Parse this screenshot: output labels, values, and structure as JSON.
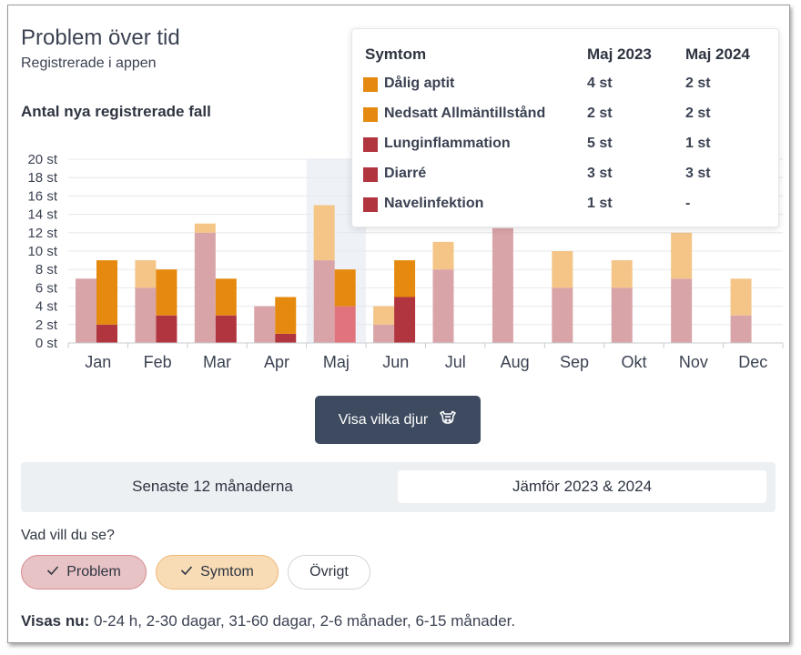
{
  "header": {
    "title": "Problem över tid",
    "subtitle": "Registrerade i appen",
    "chart_heading": "Antal nya registrerade fall"
  },
  "colors": {
    "problem_light": "#d9a4a8",
    "problem_dark": "#b0353f",
    "symtom_light": "#f4c587",
    "symtom_dark": "#e58a0f",
    "highlight_band": "#eef2f7",
    "selected_problem": "#e0737c",
    "button_bg": "#3d4a5f"
  },
  "chart_data": {
    "type": "bar",
    "stacked": true,
    "grouped_by_year": true,
    "categories": [
      "Jan",
      "Feb",
      "Mar",
      "Apr",
      "Maj",
      "Jun",
      "Jul",
      "Aug",
      "Sep",
      "Okt",
      "Nov",
      "Dec"
    ],
    "y_ticks": [
      "0 st",
      "2 st",
      "4 st",
      "6 st",
      "8 st",
      "10 st",
      "12 st",
      "14 st",
      "16 st",
      "18 st",
      "20 st"
    ],
    "ylim": [
      0,
      20
    ],
    "grid": true,
    "highlighted_category": "Maj",
    "series": [
      {
        "year": "2023",
        "stack": "Problem",
        "values": [
          7,
          6,
          12,
          4,
          9,
          2,
          8,
          12.5,
          6,
          6,
          7,
          3
        ]
      },
      {
        "year": "2023",
        "stack": "Symtom",
        "values": [
          0,
          3,
          1,
          0,
          6,
          2,
          3,
          0,
          4,
          3,
          5,
          4
        ]
      },
      {
        "year": "2024",
        "stack": "Problem",
        "values": [
          2,
          3,
          3,
          1,
          4,
          5,
          null,
          null,
          null,
          null,
          null,
          null
        ]
      },
      {
        "year": "2024",
        "stack": "Symtom",
        "values": [
          7,
          5,
          4,
          4,
          4,
          4,
          null,
          null,
          null,
          null,
          null,
          null
        ]
      }
    ]
  },
  "tooltip": {
    "headers": {
      "symptom": "Symtom",
      "col1": "Maj 2023",
      "col2": "Maj 2024"
    },
    "rows": [
      {
        "label": "Dålig aptit",
        "v2023": "4 st",
        "v2024": "2 st",
        "color": "#e58a0f"
      },
      {
        "label": "Nedsatt Allmäntillstånd",
        "v2023": "2 st",
        "v2024": "2 st",
        "color": "#e58a0f"
      },
      {
        "label": "Lunginflammation",
        "v2023": "5 st",
        "v2024": "1 st",
        "color": "#b0353f"
      },
      {
        "label": "Diarré",
        "v2023": "3 st",
        "v2024": "3 st",
        "color": "#b0353f"
      },
      {
        "label": "Navelinfektion",
        "v2023": "1 st",
        "v2024": "-",
        "color": "#b0353f"
      }
    ]
  },
  "show_animals_button": {
    "label": "Visa vilka djur",
    "icon": "cow-icon"
  },
  "toggle": {
    "option_a": "Senaste 12 månaderna",
    "option_b": "Jämför 2023 & 2024",
    "selected": "option_b"
  },
  "filters": {
    "question": "Vad vill du se?",
    "chips": [
      {
        "label": "Problem",
        "checked": true
      },
      {
        "label": "Symtom",
        "checked": true
      },
      {
        "label": "Övrigt",
        "checked": false
      }
    ]
  },
  "footer": {
    "label": "Visas nu:",
    "value": " 0-24 h, 2-30 dagar, 31-60 dagar, 2-6 månader, 6-15 månader."
  }
}
